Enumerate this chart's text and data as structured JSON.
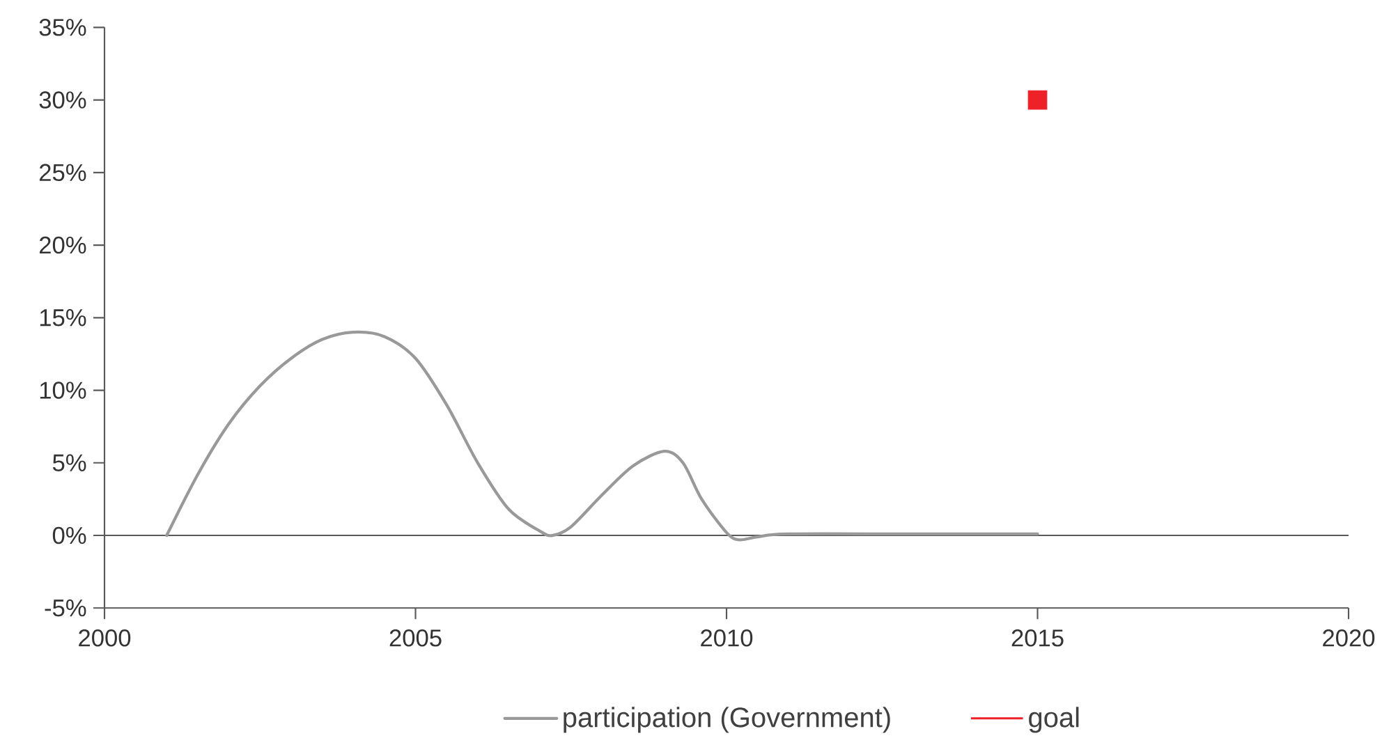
{
  "chart_data": {
    "type": "line",
    "series": [
      {
        "name": "participation (Government)",
        "color": "#999999",
        "type": "line",
        "x": [
          2001,
          2001.5,
          2002,
          2002.5,
          2003,
          2003.5,
          2004,
          2004.5,
          2005,
          2005.5,
          2006,
          2006.5,
          2007,
          2007.2,
          2007.5,
          2008,
          2008.5,
          2009,
          2009.3,
          2009.6,
          2010,
          2010.2,
          2010.5,
          2011,
          2013,
          2015
        ],
        "values": [
          0,
          4.2,
          7.7,
          10.3,
          12.2,
          13.5,
          14,
          13.7,
          12.2,
          9,
          5,
          1.8,
          0.3,
          0,
          0.6,
          2.8,
          4.8,
          5.8,
          5,
          2.5,
          0.2,
          -0.3,
          -0.1,
          0.1,
          0.1,
          0.1
        ]
      },
      {
        "name": "goal",
        "color": "#ee2028",
        "type": "scatter",
        "marker": "square",
        "x": [
          2015
        ],
        "values": [
          30
        ]
      }
    ],
    "xlim": [
      2000,
      2020
    ],
    "xticks": [
      2000,
      2005,
      2010,
      2015,
      2020
    ],
    "ylim": [
      -5,
      35
    ],
    "yticks": [
      {
        "value": -5,
        "label": "-5%"
      },
      {
        "value": 0,
        "label": "0%"
      },
      {
        "value": 5,
        "label": "5%"
      },
      {
        "value": 10,
        "label": "10%"
      },
      {
        "value": 15,
        "label": "15%"
      },
      {
        "value": 20,
        "label": "20%"
      },
      {
        "value": 25,
        "label": "25%"
      },
      {
        "value": 30,
        "label": "30%"
      },
      {
        "value": 35,
        "label": "35%"
      }
    ],
    "ref_lines": [
      {
        "axis": "y",
        "value": 0
      }
    ],
    "grid": false,
    "legend": "bottom"
  }
}
